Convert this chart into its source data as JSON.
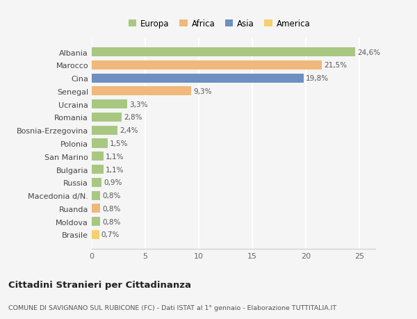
{
  "categories": [
    "Albania",
    "Marocco",
    "Cina",
    "Senegal",
    "Ucraina",
    "Romania",
    "Bosnia-Erzegovina",
    "Polonia",
    "San Marino",
    "Bulgaria",
    "Russia",
    "Macedonia d/N.",
    "Ruanda",
    "Moldova",
    "Brasile"
  ],
  "values": [
    24.6,
    21.5,
    19.8,
    9.3,
    3.3,
    2.8,
    2.4,
    1.5,
    1.1,
    1.1,
    0.9,
    0.8,
    0.8,
    0.8,
    0.7
  ],
  "labels": [
    "24,6%",
    "21,5%",
    "19,8%",
    "9,3%",
    "3,3%",
    "2,8%",
    "2,4%",
    "1,5%",
    "1,1%",
    "1,1%",
    "0,9%",
    "0,8%",
    "0,8%",
    "0,8%",
    "0,7%"
  ],
  "colors": [
    "#a8c882",
    "#f0b87a",
    "#6e8fc0",
    "#f0b87a",
    "#a8c882",
    "#a8c882",
    "#a8c882",
    "#a8c882",
    "#a8c882",
    "#a8c882",
    "#a8c882",
    "#a8c882",
    "#f0b87a",
    "#a8c882",
    "#f5d06e"
  ],
  "legend_labels": [
    "Europa",
    "Africa",
    "Asia",
    "America"
  ],
  "legend_colors": [
    "#a8c882",
    "#f0b87a",
    "#6e8fc0",
    "#f5d06e"
  ],
  "title": "Cittadini Stranieri per Cittadinanza",
  "subtitle": "COMUNE DI SAVIGNANO SUL RUBICONE (FC) - Dati ISTAT al 1° gennaio - Elaborazione TUTTITALIA.IT",
  "xlim": [
    0,
    26.5
  ],
  "xticks": [
    0,
    5,
    10,
    15,
    20,
    25
  ],
  "background_color": "#f5f5f5",
  "grid_color": "#ffffff",
  "bar_height": 0.7
}
